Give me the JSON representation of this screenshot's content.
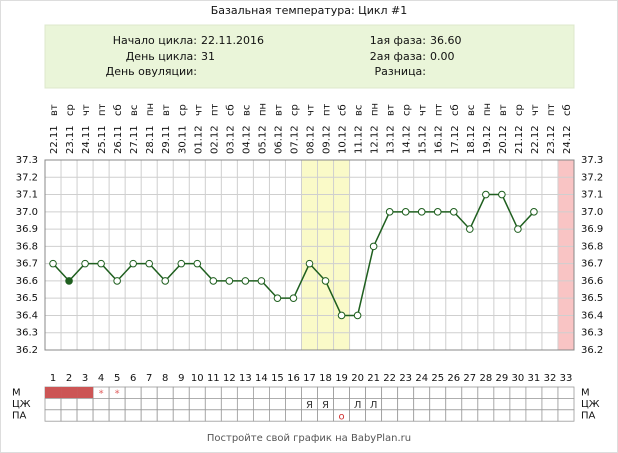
{
  "info": {
    "left": [
      {
        "label": "Начало цикла:",
        "value": "22.11.2016"
      },
      {
        "label": "День цикла:",
        "value": "31"
      },
      {
        "label": "День овуляции:"
      }
    ],
    "right": [
      {
        "label": "1ая фаза:",
        "value": "36.60"
      },
      {
        "label": "2ая фаза:",
        "value": "0.00"
      },
      {
        "label": "Разница:"
      }
    ]
  },
  "chart_data": {
    "type": "line",
    "title": "Базальная температура: Цикл #1",
    "categories": [
      1,
      2,
      3,
      4,
      5,
      6,
      7,
      8,
      9,
      10,
      11,
      12,
      13,
      14,
      15,
      16,
      17,
      18,
      19,
      20,
      21,
      22,
      23,
      24,
      25,
      26,
      27,
      28,
      29,
      30,
      31,
      32,
      33
    ],
    "dates": [
      "22.11",
      "23.11",
      "24.11",
      "25.11",
      "26.11",
      "27.11",
      "28.11",
      "29.11",
      "30.11",
      "01.12",
      "02.12",
      "03.12",
      "04.12",
      "05.12",
      "06.12",
      "07.12",
      "08.12",
      "09.12",
      "10.12",
      "11.12",
      "12.12",
      "13.12",
      "14.12",
      "15.12",
      "16.12",
      "17.12",
      "18.12",
      "19.12",
      "20.12",
      "21.12",
      "22.12",
      "23.12",
      "24.12"
    ],
    "weekdays": [
      "вт",
      "ср",
      "чт",
      "пт",
      "сб",
      "вс",
      "пн",
      "вт",
      "ср",
      "чт",
      "пт",
      "сб",
      "вс",
      "пн",
      "вт",
      "ср",
      "чт",
      "пт",
      "сб",
      "вс",
      "пн",
      "вт",
      "ср",
      "чт",
      "пт",
      "сб",
      "вс",
      "пн",
      "вт",
      "ср",
      "чт",
      "пт",
      "сб"
    ],
    "values": [
      36.7,
      36.6,
      36.7,
      36.7,
      36.6,
      36.7,
      36.7,
      36.6,
      36.7,
      36.7,
      36.6,
      36.6,
      36.6,
      36.6,
      36.5,
      36.5,
      36.7,
      36.6,
      36.4,
      36.4,
      36.8,
      37.0,
      37.0,
      37.0,
      37.0,
      37.0,
      36.9,
      37.1,
      37.1,
      36.9,
      37.0,
      null,
      null
    ],
    "color": "#1f5f1f",
    "filled_points": [
      2
    ],
    "ylim": [
      36.2,
      37.3
    ],
    "yticks": [
      36.2,
      36.3,
      36.4,
      36.5,
      36.6,
      36.7,
      36.8,
      36.9,
      {
        "value": 37,
        "label": "37.0"
      },
      37.1,
      37.2,
      37.3
    ],
    "grid": true,
    "highlights": [
      {
        "days": [
          17,
          18,
          19
        ],
        "color": "#fafac8"
      },
      {
        "days": [
          33
        ],
        "color": "#f9c4c4"
      }
    ],
    "rows": [
      {
        "label": "М",
        "filled_days": [
          1,
          2,
          3
        ],
        "fill": "#cc5555",
        "marks": [
          {
            "day": 4,
            "text": "*"
          },
          {
            "day": 5,
            "text": "*"
          }
        ],
        "mark_color": "#e06060"
      },
      {
        "label": "ЦЖ",
        "marks": [
          {
            "day": 17,
            "text": "Я"
          },
          {
            "day": 18,
            "text": "Я"
          },
          {
            "day": 20,
            "text": "Л"
          },
          {
            "day": 21,
            "text": "Л"
          }
        ],
        "mark_color": "#333333"
      },
      {
        "label": "ПА",
        "marks": [
          {
            "day": 19,
            "text": "о"
          }
        ],
        "mark_color": "#d03030"
      }
    ]
  },
  "footer": "Постройте свой график на BabyPlan.ru"
}
